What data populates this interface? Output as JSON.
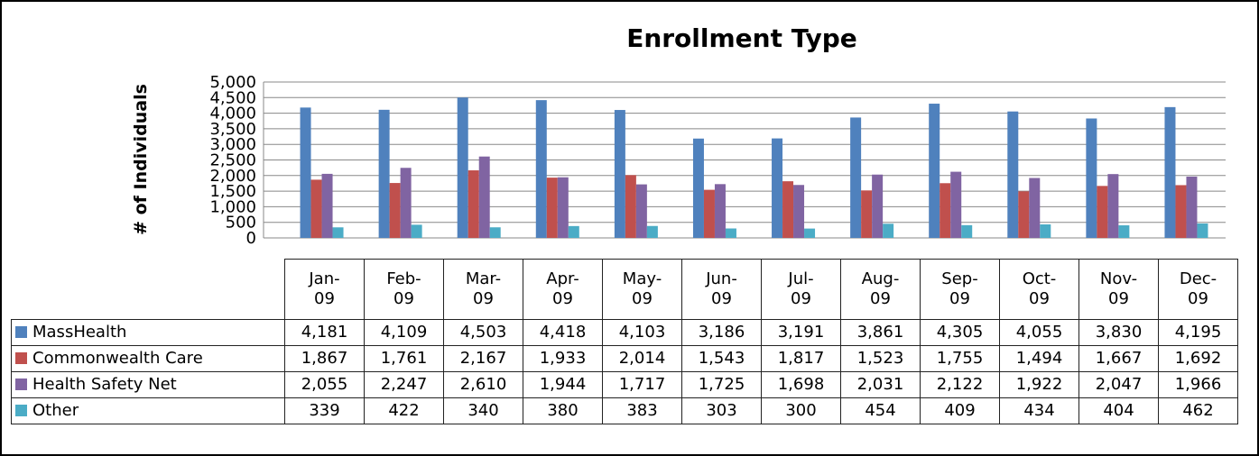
{
  "chart_data": {
    "type": "bar",
    "title": "Enrollment Type",
    "y_label": "# of Individuals",
    "categories": [
      "Jan-09",
      "Feb-09",
      "Mar-09",
      "Apr-09",
      "May-09",
      "Jun-09",
      "Jul-09",
      "Aug-09",
      "Sep-09",
      "Oct-09",
      "Nov-09",
      "Dec-09"
    ],
    "series": [
      {
        "name": "MassHealth",
        "color": "#4f81bd",
        "values": [
          4181,
          4109,
          4503,
          4418,
          4103,
          3186,
          3191,
          3861,
          4305,
          4055,
          3830,
          4195
        ],
        "value_labels": [
          "4,181",
          "4,109",
          "4,503",
          "4,418",
          "4,103",
          "3,186",
          "3,191",
          "3,861",
          "4,305",
          "4,055",
          "3,830",
          "4,195"
        ]
      },
      {
        "name": "Commonwealth Care",
        "color": "#c0504d",
        "values": [
          1867,
          1761,
          2167,
          1933,
          2014,
          1543,
          1817,
          1523,
          1755,
          1494,
          1667,
          1692
        ],
        "value_labels": [
          "1,867",
          "1,761",
          "2,167",
          "1,933",
          "2,014",
          "1,543",
          "1,817",
          "1,523",
          "1,755",
          "1,494",
          "1,667",
          "1,692"
        ]
      },
      {
        "name": "Health Safety Net",
        "color": "#8064a2",
        "values": [
          2055,
          2247,
          2610,
          1944,
          1717,
          1725,
          1698,
          2031,
          2122,
          1922,
          2047,
          1966
        ],
        "value_labels": [
          "2,055",
          "2,247",
          "2,610",
          "1,944",
          "1,717",
          "1,725",
          "1,698",
          "2,031",
          "2,122",
          "1,922",
          "2,047",
          "1,966"
        ]
      },
      {
        "name": "Other",
        "color": "#4bacc6",
        "values": [
          339,
          422,
          340,
          380,
          383,
          303,
          300,
          454,
          409,
          434,
          404,
          462
        ]
      }
    ],
    "ylim": [
      0,
      5000
    ],
    "yticks": [
      0,
      500,
      {
        "value": 1000,
        "label": "1,000"
      },
      {
        "value": 1500,
        "label": "1,500"
      },
      {
        "value": 2000,
        "label": "2,000"
      },
      {
        "value": 2500,
        "label": "2,500"
      },
      {
        "value": 3000,
        "label": "3,000"
      },
      {
        "value": 3500,
        "label": "3,500"
      },
      {
        "value": 4000,
        "label": "4,000"
      },
      {
        "value": 4500,
        "label": "4,500"
      },
      {
        "value": 5000,
        "label": "5,000"
      }
    ],
    "grid": true
  }
}
